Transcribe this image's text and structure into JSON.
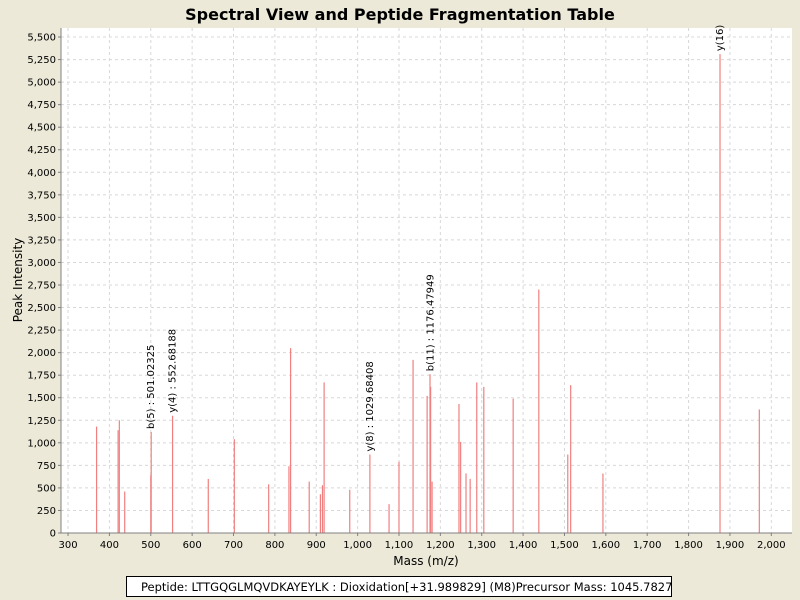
{
  "colors": {
    "background": "#ece9d8",
    "plot": "#ffffff",
    "peak": "#f08080",
    "grid": "#d8d8d8"
  },
  "chart_data": {
    "type": "bar",
    "title": "Spectral View and Peptide Fragmentation Table",
    "xlabel": "Mass (m/z)",
    "ylabel": "Peak Intensity",
    "xlim": [
      283,
      2050
    ],
    "ylim": [
      0,
      5600
    ],
    "xticks": [
      300,
      400,
      500,
      600,
      700,
      800,
      900,
      1000,
      1100,
      1200,
      1300,
      1400,
      1500,
      1600,
      1700,
      1800,
      1900,
      2000
    ],
    "xtick_labels": [
      "300",
      "400",
      "500",
      "600",
      "700",
      "800",
      "900",
      "1,000",
      "1,100",
      "1,200",
      "1,300",
      "1,400",
      "1,500",
      "1,600",
      "1,700",
      "1,800",
      "1,900",
      "2,000"
    ],
    "yticks": [
      0,
      250,
      500,
      750,
      1000,
      1250,
      1500,
      1750,
      2000,
      2250,
      2500,
      2750,
      3000,
      3250,
      3500,
      3750,
      4000,
      4250,
      4500,
      4750,
      5000,
      5250,
      5500
    ],
    "ytick_labels": [
      "0",
      "250",
      "500",
      "750",
      "1,000",
      "1,250",
      "1,500",
      "1,750",
      "2,000",
      "2,250",
      "2,500",
      "2,750",
      "3,000",
      "3,250",
      "3,500",
      "3,750",
      "4,000",
      "4,250",
      "4,500",
      "4,750",
      "5,000",
      "5,250",
      "5,500"
    ],
    "grid": true,
    "peaks": [
      {
        "mz": 369,
        "intensity": 1180
      },
      {
        "mz": 421,
        "intensity": 1140
      },
      {
        "mz": 424,
        "intensity": 1250
      },
      {
        "mz": 437,
        "intensity": 460
      },
      {
        "mz": 500,
        "intensity": 640
      },
      {
        "mz": 501.02,
        "intensity": 1120
      },
      {
        "mz": 552.68,
        "intensity": 1300
      },
      {
        "mz": 639,
        "intensity": 600
      },
      {
        "mz": 702,
        "intensity": 1040
      },
      {
        "mz": 785,
        "intensity": 540
      },
      {
        "mz": 834,
        "intensity": 740
      },
      {
        "mz": 838,
        "intensity": 2050
      },
      {
        "mz": 883,
        "intensity": 570
      },
      {
        "mz": 910,
        "intensity": 430
      },
      {
        "mz": 915,
        "intensity": 530
      },
      {
        "mz": 919,
        "intensity": 1670
      },
      {
        "mz": 981,
        "intensity": 480
      },
      {
        "mz": 1029.68,
        "intensity": 870
      },
      {
        "mz": 1076,
        "intensity": 320
      },
      {
        "mz": 1100,
        "intensity": 790
      },
      {
        "mz": 1134,
        "intensity": 1920
      },
      {
        "mz": 1168,
        "intensity": 1520
      },
      {
        "mz": 1175,
        "intensity": 1760
      },
      {
        "mz": 1176.48,
        "intensity": 1620
      },
      {
        "mz": 1180,
        "intensity": 570
      },
      {
        "mz": 1245,
        "intensity": 1430
      },
      {
        "mz": 1249,
        "intensity": 1010
      },
      {
        "mz": 1262,
        "intensity": 660
      },
      {
        "mz": 1272,
        "intensity": 600
      },
      {
        "mz": 1288,
        "intensity": 1670
      },
      {
        "mz": 1305,
        "intensity": 1620
      },
      {
        "mz": 1376,
        "intensity": 1490
      },
      {
        "mz": 1438,
        "intensity": 2700
      },
      {
        "mz": 1508,
        "intensity": 870
      },
      {
        "mz": 1515,
        "intensity": 1640
      },
      {
        "mz": 1593,
        "intensity": 660
      },
      {
        "mz": 1876,
        "intensity": 5310
      },
      {
        "mz": 1971,
        "intensity": 1370
      }
    ],
    "annotations": [
      {
        "text": "b(5) : 501.02325",
        "mz": 501.02,
        "intensity": 1120
      },
      {
        "text": "y(4) : 552.68188",
        "mz": 552.68,
        "intensity": 1300
      },
      {
        "text": "y(8) : 1029.68408",
        "mz": 1029.68,
        "intensity": 870
      },
      {
        "text": "b(11) : 1176.47949",
        "mz": 1176.48,
        "intensity": 1760
      },
      {
        "text": "y(16)",
        "mz": 1876,
        "intensity": 5310
      }
    ]
  },
  "legend": {
    "peptide": "Peptide: LTTGQGLMQVDKAYEYLK : Dioxidation[+31.989829] (M8)",
    "precursor": "Precursor Mass: 1045.7827"
  }
}
